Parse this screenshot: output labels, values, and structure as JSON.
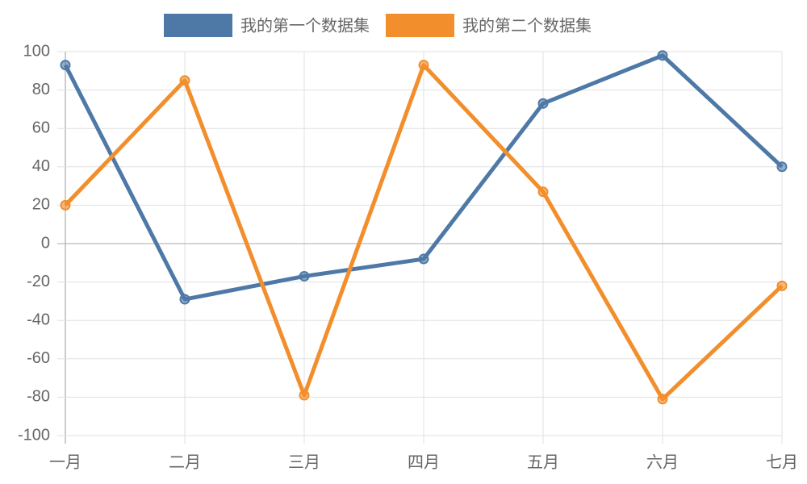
{
  "chart_data": {
    "type": "line",
    "categories": [
      "一月",
      "二月",
      "三月",
      "四月",
      "五月",
      "六月",
      "七月"
    ],
    "series": [
      {
        "name": "我的第一个数据集",
        "color": "#4e79a7",
        "values": [
          93,
          -29,
          -17,
          -8,
          73,
          98,
          40
        ]
      },
      {
        "name": "我的第二个数据集",
        "color": "#f28e2b",
        "values": [
          20,
          85,
          -79,
          93,
          27,
          -81,
          -22
        ]
      }
    ],
    "ylim": [
      -100,
      100
    ],
    "yticks": [
      -100,
      -80,
      -60,
      -40,
      -20,
      0,
      20,
      40,
      60,
      80,
      100
    ],
    "grid": true
  }
}
